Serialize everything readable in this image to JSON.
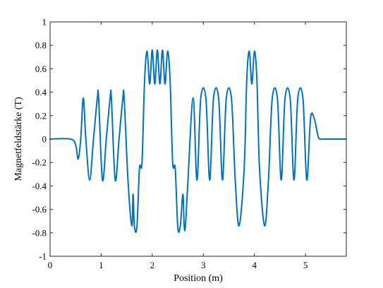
{
  "chart_data": {
    "type": "line",
    "title": "",
    "xlabel": "Position (m)",
    "ylabel": "Magnetfeldstärke (T)",
    "xlim": [
      0,
      5.8
    ],
    "ylim": [
      -1,
      1
    ],
    "xticks": [
      0,
      1,
      2,
      3,
      4,
      5
    ],
    "xtick_labels": [
      "0",
      "1",
      "2",
      "3",
      "4",
      "5"
    ],
    "yticks": [
      -1,
      -0.8,
      -0.6,
      -0.4,
      -0.2,
      0,
      0.2,
      0.4,
      0.6,
      0.8,
      1
    ],
    "ytick_labels": [
      "-1",
      "-0.8",
      "-0.6",
      "-0.4",
      "-0.2",
      "0",
      "0.2",
      "0.4",
      "0.6",
      "0.8",
      "1"
    ],
    "grid": false,
    "line_color": "#0072BD",
    "series": [
      {
        "x": [
          0,
          0.4,
          0.5,
          0.55,
          0.6,
          0.65,
          0.7,
          0.775,
          0.85,
          0.925,
          0.95,
          1.025,
          1.1,
          1.175,
          1.2,
          1.275,
          1.35,
          1.425,
          1.45,
          1.525,
          1.6,
          1.625,
          1.65,
          1.7,
          1.75,
          1.8,
          1.85,
          1.9,
          1.95,
          2.0,
          2.05,
          2.1,
          2.15,
          2.2,
          2.25,
          2.3,
          2.35,
          2.4,
          2.45,
          2.5,
          2.55,
          2.6,
          2.625,
          2.65,
          2.7,
          2.8,
          2.875,
          2.95,
          3.05,
          3.125,
          3.2,
          3.3,
          3.375,
          3.45,
          3.55,
          3.625,
          3.7,
          3.8,
          3.85,
          3.9,
          3.95,
          4.0,
          4.05,
          4.1,
          4.2,
          4.275,
          4.35,
          4.45,
          4.525,
          4.6,
          4.7,
          4.775,
          4.85,
          4.95,
          5.025,
          5.1,
          5.175,
          5.25,
          5.3,
          5.4,
          5.8
        ],
        "y": [
          0,
          0,
          -0.05,
          -0.17,
          0,
          0.35,
          0,
          -0.35,
          0,
          0.35,
          0.35,
          -0.35,
          0,
          0.35,
          0.35,
          -0.35,
          0,
          0.35,
          0.35,
          -0.35,
          -0.74,
          -0.47,
          -0.74,
          -0.75,
          -0.25,
          -0.2,
          0.5,
          0.75,
          0.47,
          0.76,
          0.47,
          0.76,
          0.47,
          0.76,
          0.47,
          0.75,
          0.5,
          -0.2,
          -0.25,
          -0.75,
          -0.74,
          -0.47,
          -0.74,
          -0.74,
          -0.35,
          0.35,
          -0.35,
          0.35,
          0.35,
          -0.35,
          0.35,
          0.35,
          -0.35,
          0.35,
          0.35,
          -0.35,
          -0.74,
          -0.25,
          0.5,
          0.75,
          0.47,
          0.75,
          0.5,
          -0.25,
          -0.74,
          -0.35,
          0.35,
          0.35,
          -0.35,
          0.35,
          0.35,
          -0.35,
          0.35,
          0.35,
          -0.35,
          0.18,
          0.17,
          0.02,
          0,
          0,
          0
        ]
      }
    ]
  }
}
